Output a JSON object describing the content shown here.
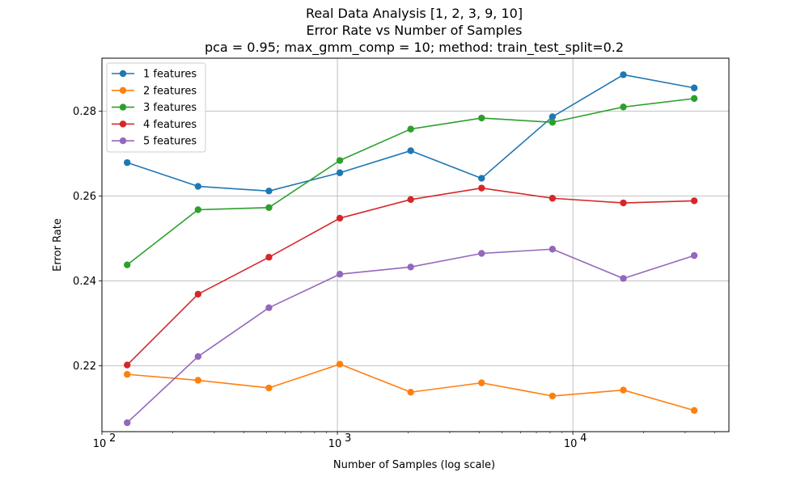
{
  "chart_data": {
    "type": "line",
    "title": [
      "Real Data Analysis [1, 2, 3, 9, 10]",
      "Error Rate vs Number of Samples",
      "pca = 0.95; max_gmm_comp = 10; method: train_test_split=0.2"
    ],
    "xlabel": "Number of Samples (log scale)",
    "ylabel": "Error Rate",
    "xscale": "log",
    "xlim": [
      100,
      46000
    ],
    "ylim": [
      0.2045,
      0.2925
    ],
    "grid": true,
    "legend_position": "top-left",
    "x": [
      128,
      256,
      512,
      1024,
      2048,
      4096,
      8192,
      16384,
      32768
    ],
    "x_ticks": [
      {
        "value": 100,
        "label": "10",
        "exp": "2"
      },
      {
        "value": 1000,
        "label": "10",
        "exp": "3"
      },
      {
        "value": 10000,
        "label": "10",
        "exp": "4"
      }
    ],
    "y_ticks": [
      {
        "value": 0.22,
        "label": "0.22"
      },
      {
        "value": 0.24,
        "label": "0.24"
      },
      {
        "value": 0.26,
        "label": "0.26"
      },
      {
        "value": 0.28,
        "label": "0.28"
      }
    ],
    "series": [
      {
        "name": "1 features",
        "color": "#1f77b4",
        "values": [
          0.2679,
          0.2623,
          0.2612,
          0.2655,
          0.2707,
          0.2642,
          0.2787,
          0.2886,
          0.2855
        ]
      },
      {
        "name": "2 features",
        "color": "#ff7f0e",
        "values": [
          0.218,
          0.2166,
          0.2148,
          0.2204,
          0.2138,
          0.216,
          0.2129,
          0.2143,
          0.2095
        ]
      },
      {
        "name": "3 features",
        "color": "#2ca02c",
        "values": [
          0.2438,
          0.2568,
          0.2573,
          0.2684,
          0.2758,
          0.2784,
          0.2774,
          0.281,
          0.283
        ]
      },
      {
        "name": "4 features",
        "color": "#d62728",
        "values": [
          0.2202,
          0.2369,
          0.2456,
          0.2548,
          0.2592,
          0.2619,
          0.2595,
          0.2584,
          0.2589
        ]
      },
      {
        "name": "5 features",
        "color": "#9467bd",
        "values": [
          0.2066,
          0.2222,
          0.2337,
          0.2416,
          0.2433,
          0.2465,
          0.2475,
          0.2406,
          0.246
        ]
      }
    ]
  }
}
